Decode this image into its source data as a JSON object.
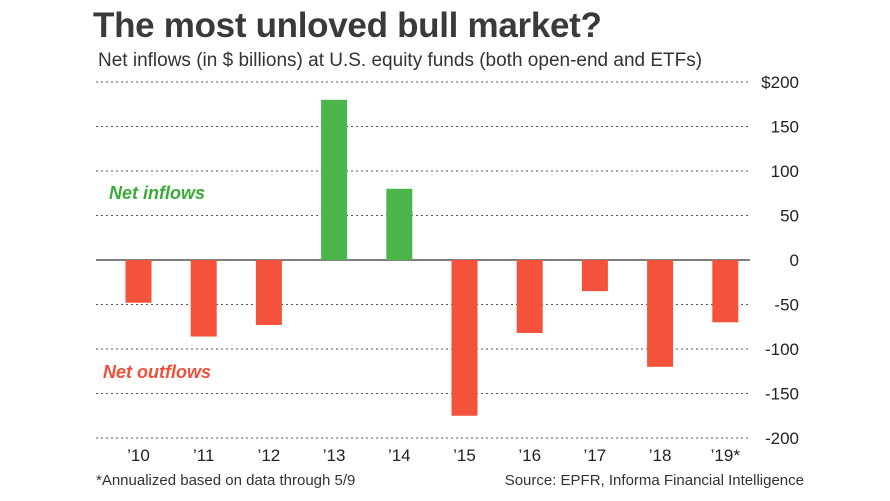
{
  "chart_data": {
    "type": "bar",
    "title": "The most unloved bull market?",
    "subtitle": "Net inflows (in $ billions) at U.S. equity funds (both open-end and ETFs)",
    "categories": [
      "’10",
      "’11",
      "’12",
      "’13",
      "’14",
      "’15",
      "’16",
      "’17",
      "’18",
      "’19*"
    ],
    "values": [
      -48,
      -86,
      -73,
      180,
      80,
      -175,
      -82,
      -35,
      -120,
      -70
    ],
    "ylim": [
      -200,
      200
    ],
    "yticks": [
      200,
      150,
      100,
      50,
      0,
      -50,
      -100,
      -150,
      -200
    ],
    "ytick_labels": [
      "$200",
      "150",
      "100",
      "50",
      "0",
      "-50",
      "-100",
      "-150",
      "-200"
    ],
    "grid": true,
    "annotations": {
      "inflows_label": "Net inflows",
      "outflows_label": "Net outflows"
    },
    "colors": {
      "positive": "#4bb64a",
      "negative": "#f4523a",
      "inflows_text": "#3daa3d",
      "outflows_text": "#f0503a",
      "grid": "#555555"
    },
    "footnote": "*Annualized based on data through 5/9",
    "source": "Source: EPFR, Informa Financial Intelligence"
  }
}
